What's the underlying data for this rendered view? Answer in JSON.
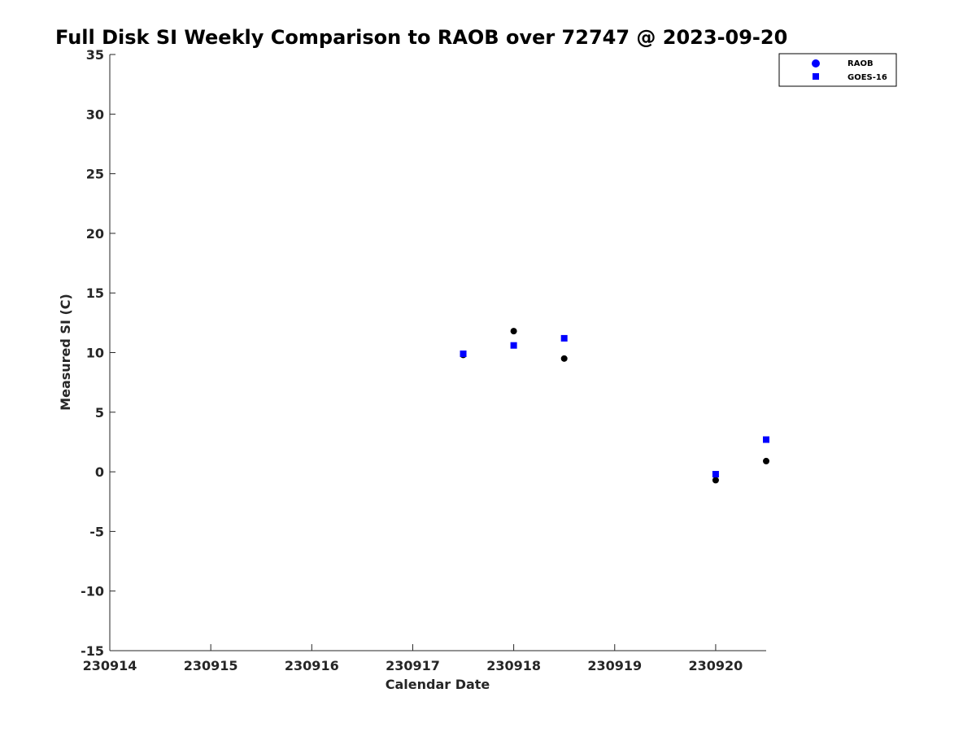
{
  "chart_data": {
    "type": "scatter",
    "title": "Full Disk SI Weekly Comparison to RAOB over 72747 @ 2023-09-20",
    "xlabel": "Calendar Date",
    "ylabel": "Measured SI (C)",
    "xlim": [
      230914,
      230920.5
    ],
    "ylim": [
      -15,
      35
    ],
    "x_ticks": [
      230914,
      230915,
      230916,
      230917,
      230918,
      230919,
      230920
    ],
    "x_tick_labels": [
      "230914",
      "230915",
      "230916",
      "230917",
      "230918",
      "230919",
      "230920"
    ],
    "y_ticks": [
      -15,
      -10,
      -5,
      0,
      5,
      10,
      15,
      20,
      25,
      30,
      35
    ],
    "y_tick_labels": [
      "-15",
      "-10",
      "-5",
      "0",
      "5",
      "10",
      "15",
      "20",
      "25",
      "30",
      "35"
    ],
    "grid": false,
    "legend_position": "top-right",
    "series": [
      {
        "name": "RAOB",
        "legend_color": "#0000ff",
        "marker_color": "#000000",
        "marker": "circle",
        "x": [
          230917.5,
          230918,
          230918.5,
          230920,
          230920.5
        ],
        "y": [
          9.8,
          11.8,
          9.5,
          -0.7,
          0.9
        ]
      },
      {
        "name": "GOES-16",
        "legend_color": "#0000ff",
        "marker_color": "#0000ff",
        "marker": "square",
        "x": [
          230917.5,
          230918,
          230918.5,
          230920,
          230920.5
        ],
        "y": [
          9.9,
          10.6,
          11.2,
          -0.2,
          2.7
        ]
      }
    ]
  }
}
